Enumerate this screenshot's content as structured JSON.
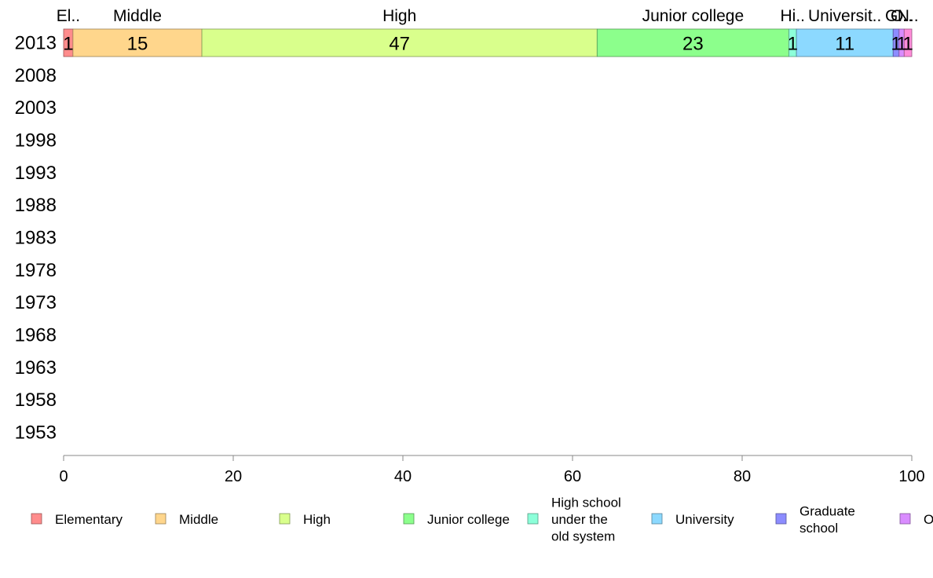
{
  "chart_data": {
    "type": "bar",
    "orientation": "horizontal",
    "stacked": "percent",
    "categories": [
      "2013",
      "2008",
      "2003",
      "1998",
      "1993",
      "1988",
      "1983",
      "1978",
      "1973",
      "1968",
      "1963",
      "1958",
      "1953"
    ],
    "series": [
      {
        "name": "Elementary",
        "color": "#ff8c8c",
        "values": [
          1.1,
          null,
          null,
          null,
          null,
          null,
          null,
          null,
          null,
          null,
          null,
          null,
          null
        ],
        "value_labels": [
          "1",
          "",
          "",
          "",
          "",
          "",
          "",
          "",
          "",
          "",
          "",
          "",
          ""
        ],
        "top_label": "El.."
      },
      {
        "name": "Middle",
        "color": "#ffd68c",
        "values": [
          15.2,
          null,
          null,
          null,
          null,
          null,
          null,
          null,
          null,
          null,
          null,
          null,
          null
        ],
        "value_labels": [
          "15",
          "",
          "",
          "",
          "",
          "",
          "",
          "",
          "",
          "",
          "",
          "",
          ""
        ],
        "top_label": "Middle"
      },
      {
        "name": "High",
        "color": "#d9ff8c",
        "values": [
          46.6,
          null,
          null,
          null,
          null,
          null,
          null,
          null,
          null,
          null,
          null,
          null,
          null
        ],
        "value_labels": [
          "47",
          "",
          "",
          "",
          "",
          "",
          "",
          "",
          "",
          "",
          "",
          "",
          ""
        ],
        "top_label": "High"
      },
      {
        "name": "Junior college",
        "color": "#8cff8c",
        "values": [
          22.6,
          null,
          null,
          null,
          null,
          null,
          null,
          null,
          null,
          null,
          null,
          null,
          null
        ],
        "value_labels": [
          "23",
          "",
          "",
          "",
          "",
          "",
          "",
          "",
          "",
          "",
          "",
          "",
          ""
        ],
        "top_label": "Junior college"
      },
      {
        "name": "High school under the old system",
        "display_lines": [
          "High school",
          "under the",
          "old system"
        ],
        "color": "#8cffd9",
        "values": [
          0.9,
          null,
          null,
          null,
          null,
          null,
          null,
          null,
          null,
          null,
          null,
          null,
          null
        ],
        "value_labels": [
          "1",
          "",
          "",
          "",
          "",
          "",
          "",
          "",
          "",
          "",
          "",
          "",
          ""
        ],
        "top_label": "Hi.."
      },
      {
        "name": "University",
        "color": "#8cd9ff",
        "values": [
          11.4,
          null,
          null,
          null,
          null,
          null,
          null,
          null,
          null,
          null,
          null,
          null,
          null
        ],
        "value_labels": [
          "11",
          "",
          "",
          "",
          "",
          "",
          "",
          "",
          "",
          "",
          "",
          "",
          ""
        ],
        "top_label": "Universit.."
      },
      {
        "name": "Graduate school",
        "display_lines": [
          "Graduate",
          "school"
        ],
        "color": "#8c8cff",
        "values": [
          0.7,
          null,
          null,
          null,
          null,
          null,
          null,
          null,
          null,
          null,
          null,
          null,
          null
        ],
        "value_labels": [
          "1",
          "",
          "",
          "",
          "",
          "",
          "",
          "",
          "",
          "",
          "",
          "",
          ""
        ],
        "top_label": "G.."
      },
      {
        "name": "O",
        "color": "#d98cff",
        "values": [
          0.6,
          null,
          null,
          null,
          null,
          null,
          null,
          null,
          null,
          null,
          null,
          null,
          null
        ],
        "value_labels": [
          "1",
          "",
          "",
          "",
          "",
          "",
          "",
          "",
          "",
          "",
          "",
          "",
          ""
        ],
        "top_label": "O.."
      },
      {
        "name": "",
        "color": "#ff8cd9",
        "values": [
          0.9,
          null,
          null,
          null,
          null,
          null,
          null,
          null,
          null,
          null,
          null,
          null,
          null
        ],
        "value_labels": [
          "1",
          "",
          "",
          "",
          "",
          "",
          "",
          "",
          "",
          "",
          "",
          "",
          ""
        ],
        "top_label": "N.."
      }
    ],
    "xlim": [
      0,
      100
    ],
    "xticks": [
      0,
      20,
      40,
      60,
      80,
      100
    ],
    "title": "",
    "xlabel": "",
    "ylabel": "",
    "grid": false,
    "legend_position": "bottom"
  }
}
